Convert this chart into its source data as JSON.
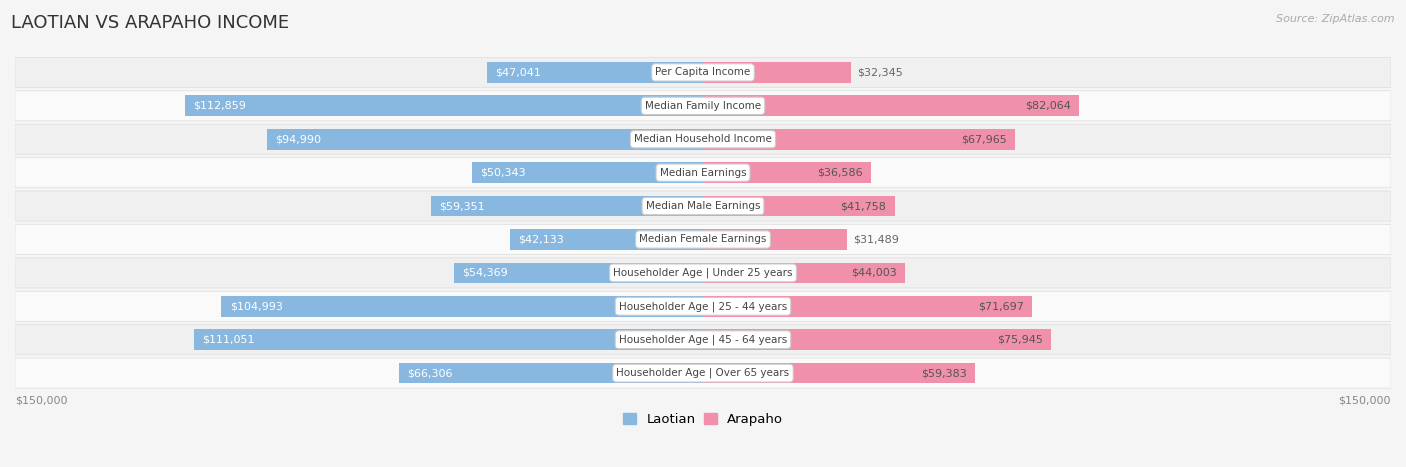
{
  "title": "LAOTIAN VS ARAPAHO INCOME",
  "source": "Source: ZipAtlas.com",
  "categories": [
    "Per Capita Income",
    "Median Family Income",
    "Median Household Income",
    "Median Earnings",
    "Median Male Earnings",
    "Median Female Earnings",
    "Householder Age | Under 25 years",
    "Householder Age | 25 - 44 years",
    "Householder Age | 45 - 64 years",
    "Householder Age | Over 65 years"
  ],
  "laotian_values": [
    47041,
    112859,
    94990,
    50343,
    59351,
    42133,
    54369,
    104993,
    111051,
    66306
  ],
  "arapaho_values": [
    32345,
    82064,
    67965,
    36586,
    41758,
    31489,
    44003,
    71697,
    75945,
    59383
  ],
  "laotian_labels": [
    "$47,041",
    "$112,859",
    "$94,990",
    "$50,343",
    "$59,351",
    "$42,133",
    "$54,369",
    "$104,993",
    "$111,051",
    "$66,306"
  ],
  "arapaho_labels": [
    "$32,345",
    "$82,064",
    "$67,965",
    "$36,586",
    "$41,758",
    "$31,489",
    "$44,003",
    "$71,697",
    "$75,945",
    "$59,383"
  ],
  "max_value": 150000,
  "laotian_color": "#88b8e0",
  "arapaho_color": "#f090aa",
  "row_bg_even": "#f0f0f0",
  "row_bg_odd": "#fafafa",
  "bg_color": "#f5f5f5",
  "label_white_threshold": 60000,
  "legend_laotian": "Laotian",
  "legend_arapaho": "Arapaho",
  "axis_label": "$150,000",
  "title_fontsize": 13,
  "source_fontsize": 8,
  "bar_label_fontsize": 8,
  "cat_label_fontsize": 7.5
}
